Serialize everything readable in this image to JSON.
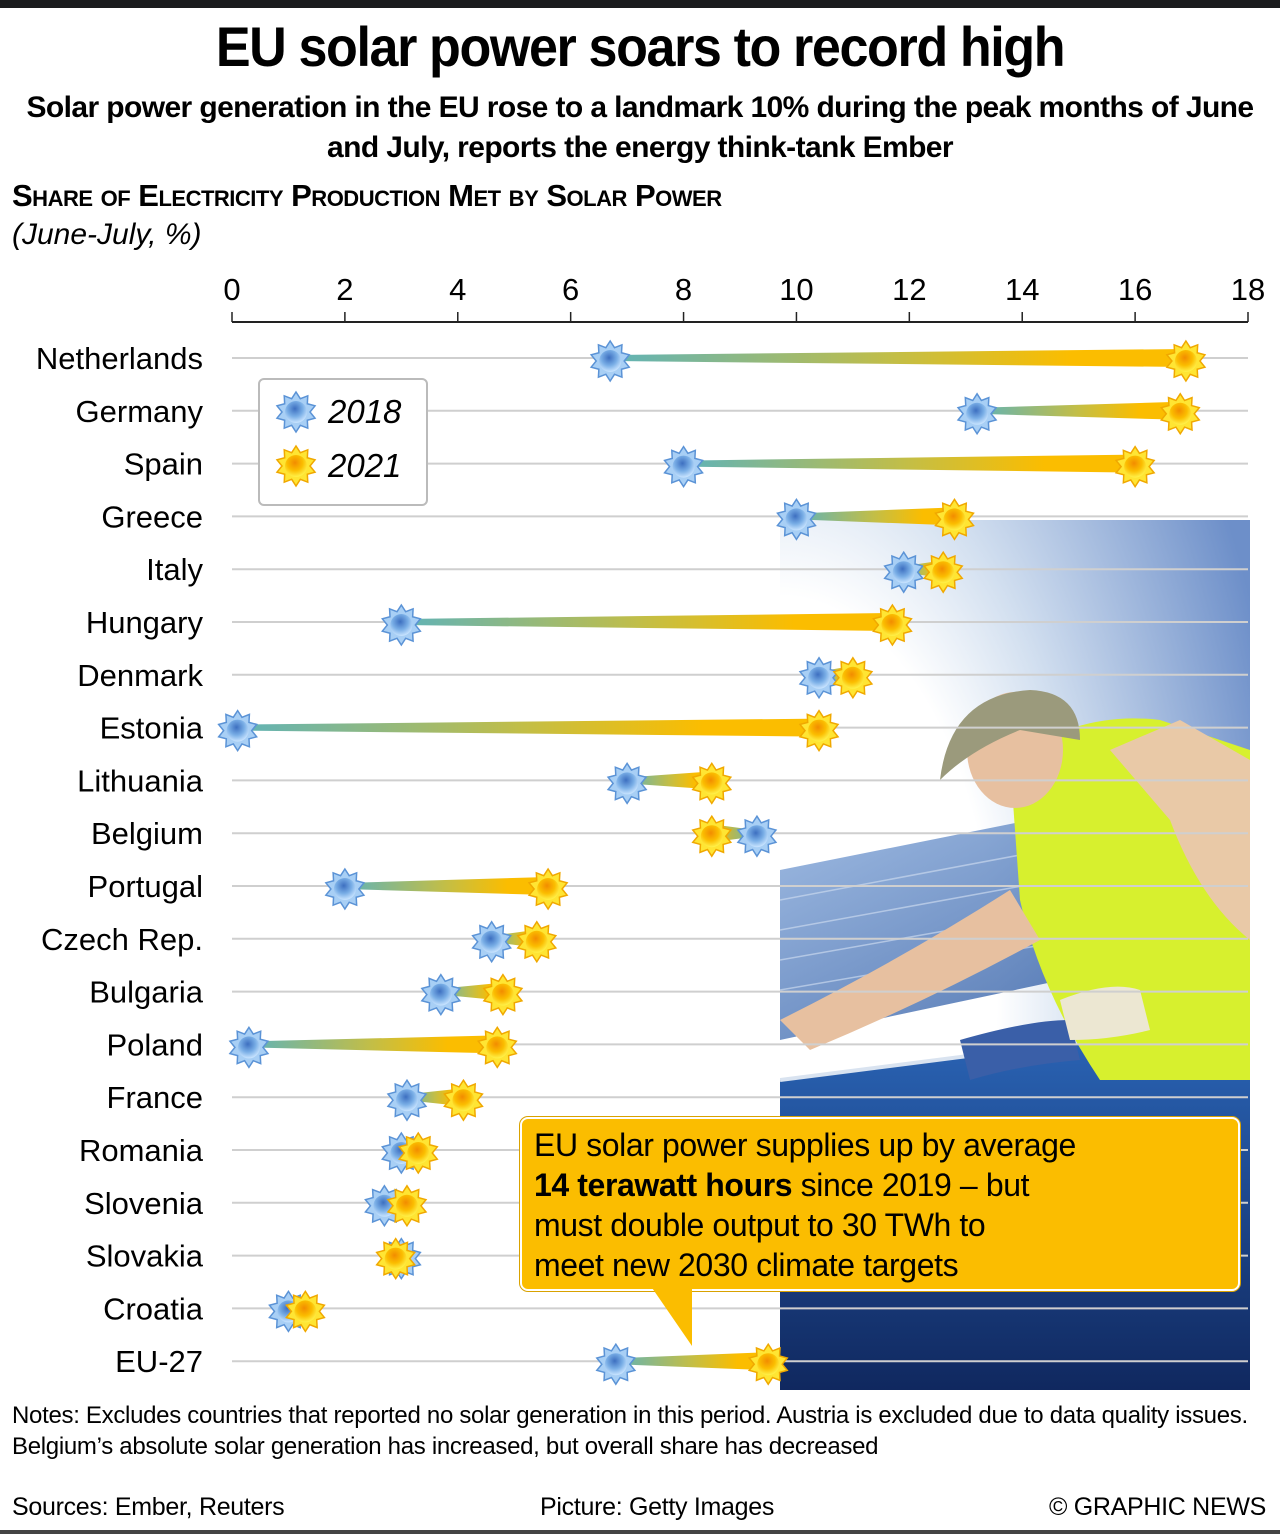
{
  "header": {
    "title": "EU solar power soars to record high",
    "subtitle": "Solar power generation in the EU rose to a landmark 10% during the peak months of June and July, reports the energy think-tank Ember"
  },
  "chart_data": {
    "type": "dumbbell",
    "title": "Share of Electricity Production Met by Solar Power",
    "subtitle": "(June-July, %)",
    "xlabel": "",
    "ylabel": "",
    "xlim": [
      0,
      18
    ],
    "xticks": [
      0,
      2,
      4,
      6,
      8,
      10,
      12,
      14,
      16,
      18
    ],
    "grid": true,
    "legend_position": "top-left",
    "categories": [
      "Netherlands",
      "Germany",
      "Spain",
      "Greece",
      "Italy",
      "Hungary",
      "Denmark",
      "Estonia",
      "Lithuania",
      "Belgium",
      "Portugal",
      "Czech Rep.",
      "Bulgaria",
      "Poland",
      "France",
      "Romania",
      "Slovenia",
      "Slovakia",
      "Croatia",
      "EU-27"
    ],
    "series": [
      {
        "name": "2018",
        "color": "#6fa8e0",
        "values": [
          6.7,
          13.2,
          8.0,
          10.0,
          11.9,
          3.0,
          10.4,
          0.1,
          7.0,
          9.3,
          2.0,
          4.6,
          3.7,
          0.3,
          3.1,
          3.0,
          2.7,
          3.0,
          1.0,
          6.8
        ]
      },
      {
        "name": "2021",
        "color": "#fbbd00",
        "values": [
          16.9,
          16.8,
          16.0,
          12.8,
          12.6,
          11.7,
          11.0,
          10.4,
          8.5,
          8.5,
          5.6,
          5.4,
          4.8,
          4.7,
          4.1,
          3.3,
          3.1,
          2.9,
          1.3,
          9.5
        ]
      }
    ]
  },
  "legend": {
    "items": [
      {
        "label": "2018",
        "icon": "blue-sun-icon"
      },
      {
        "label": "2021",
        "icon": "yellow-sun-icon"
      }
    ]
  },
  "callout": {
    "line1": "EU solar power supplies up by average",
    "bold": "14 terawatt hours",
    "line2_rest": " since 2019 – but",
    "line3": "must double output to 30 TWh to",
    "line4": "meet new 2030 climate targets"
  },
  "photo": {
    "description": "Worker in yellow hi-vis vest installing solar panels"
  },
  "footer": {
    "notes": "Notes: Excludes countries that reported no solar generation in this period. Austria is excluded due to data quality issues. Belgium’s absolute solar generation has increased, but overall share has decreased",
    "sources": "Sources: Ember, Reuters",
    "picture": "Picture: Getty Images",
    "credit": "© GRAPHIC NEWS"
  },
  "colors": {
    "blue_2018": "#6fa8e0",
    "yellow_2021": "#fbbd00",
    "connector_start": "#5fb3b8",
    "gridline": "#cfcfcf"
  }
}
